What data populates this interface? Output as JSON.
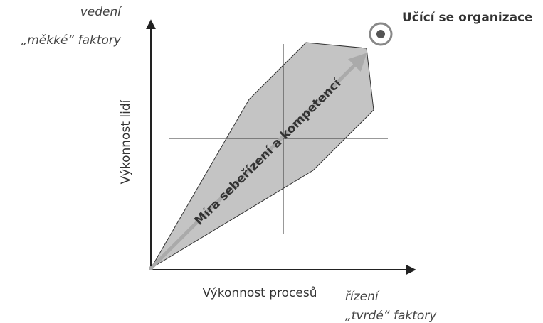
{
  "y_axis": {
    "top_label": "vedení",
    "bottom_label": "„měkké“ faktory",
    "title": "Výkonnost lidí"
  },
  "x_axis": {
    "title": "Výkonnost procesů",
    "top_label": "řízení",
    "bottom_label": "„tvrdé“ faktory"
  },
  "arrow_label": "Míra sebeřízení a kompetencí",
  "target_label": "Učící se organizace"
}
